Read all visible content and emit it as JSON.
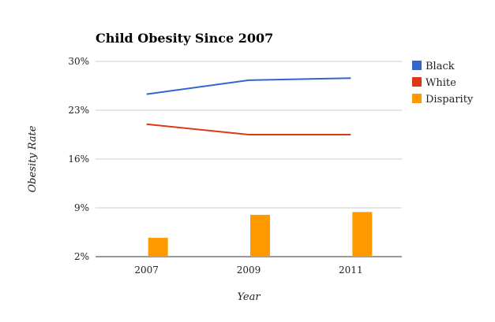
{
  "chart_data": {
    "type": "bar",
    "title": "Child Obesity Since 2007",
    "xlabel": "Year",
    "ylabel": "Obesity Rate",
    "categories": [
      "2007",
      "2009",
      "2011"
    ],
    "ylim": [
      2,
      30
    ],
    "yticks": [
      2,
      9,
      16,
      23,
      30
    ],
    "ytick_labels": [
      "2%",
      "9%",
      "16%",
      "23%",
      "30%"
    ],
    "grid": true,
    "legend_position": "right",
    "series": [
      {
        "name": "Black",
        "type": "line",
        "color": "#3366cc",
        "values": [
          25.3,
          27.3,
          27.6
        ]
      },
      {
        "name": "White",
        "type": "line",
        "color": "#dc3912",
        "values": [
          21.0,
          19.5,
          19.5
        ]
      },
      {
        "name": "Disparity",
        "type": "bar",
        "color": "#ff9900",
        "values": [
          4.7,
          8.0,
          8.4
        ]
      }
    ]
  }
}
